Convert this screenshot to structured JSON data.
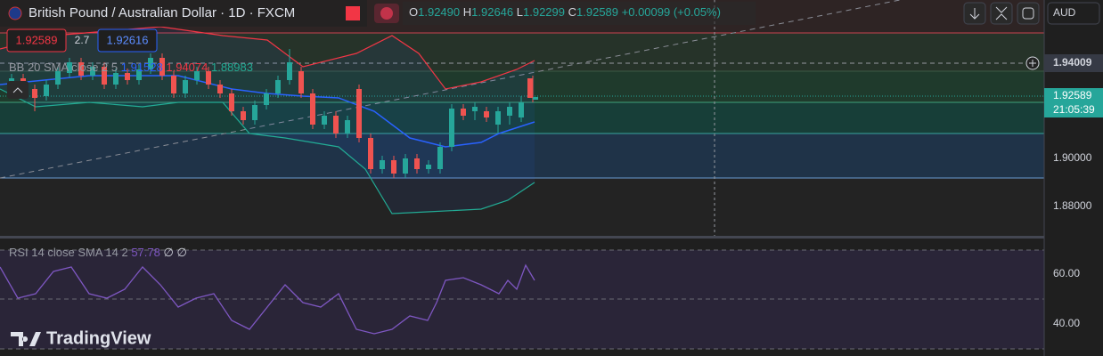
{
  "header": {
    "title": "British Pound / Australian Dollar · 1D · FXCM",
    "ohlc": [
      {
        "key": "O",
        "value": "1.92490"
      },
      {
        "key": "H",
        "value": "1.92646"
      },
      {
        "key": "L",
        "value": "1.92299"
      },
      {
        "key": "C",
        "value": "1.92589"
      }
    ],
    "change": "+0.00099 (+0.05%)"
  },
  "trade": {
    "sell": "1.92589",
    "spread": "2.7",
    "buy": "1.92616"
  },
  "indicators": {
    "bb": {
      "label": "BB 20 SMA close 2 5",
      "values": [
        "1.91528",
        "1.94074",
        "1.88983"
      ]
    },
    "rsi": {
      "label": "RSI 14 close SMA 14 2",
      "values": [
        "57.78",
        "∅",
        "∅"
      ]
    }
  },
  "price_axis": {
    "currency": "AUD",
    "labels": [
      "1.94009",
      "1.92589",
      "21:05:39",
      "1.90000",
      "1.88000"
    ],
    "rsi_labels": [
      "60.00",
      "40.00"
    ]
  },
  "brand": "TradingView"
}
